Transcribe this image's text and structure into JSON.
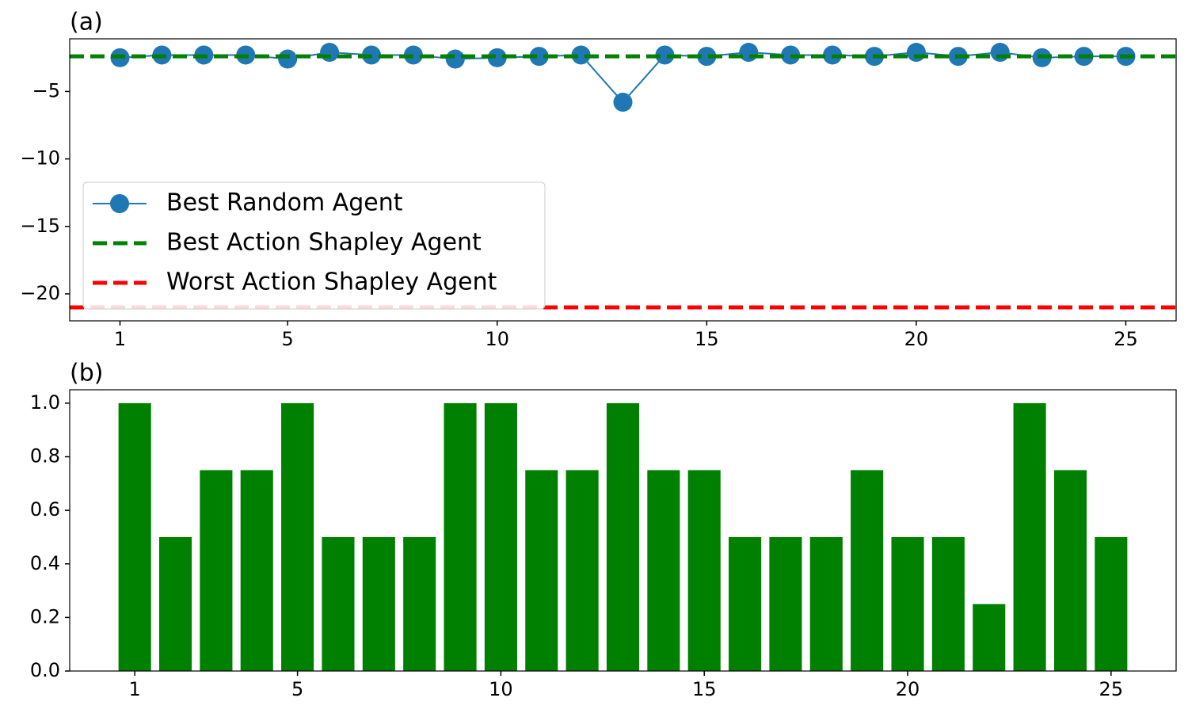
{
  "chart_data": [
    {
      "type": "line",
      "title": "(a)",
      "x": [
        1,
        2,
        3,
        4,
        5,
        6,
        7,
        8,
        9,
        10,
        11,
        12,
        13,
        14,
        15,
        16,
        17,
        18,
        19,
        20,
        21,
        22,
        23,
        24,
        25
      ],
      "series": [
        {
          "name": "Best Random Agent",
          "color": "#1f77b4",
          "values": [
            -2.5,
            -2.3,
            -2.3,
            -2.3,
            -2.6,
            -2.1,
            -2.3,
            -2.3,
            -2.6,
            -2.5,
            -2.4,
            -2.3,
            -5.8,
            -2.3,
            -2.4,
            -2.1,
            -2.3,
            -2.3,
            -2.4,
            -2.1,
            -2.4,
            -2.1,
            -2.5,
            -2.4,
            -2.4
          ]
        }
      ],
      "hlines": [
        {
          "name": "Best Action Shapley Agent",
          "color": "#008000",
          "value": -2.4
        },
        {
          "name": "Worst Action Shapley Agent",
          "color": "#ff0000",
          "value": -21.0
        }
      ],
      "xlim": [
        -0.2,
        26.2
      ],
      "xticks": [
        1,
        5,
        10,
        15,
        20,
        25
      ],
      "ylim": [
        -22,
        -1.1
      ],
      "yticks": [
        {
          "value": -5,
          "label": "−5"
        },
        {
          "value": -10,
          "label": "−10"
        },
        {
          "value": -15,
          "label": "−15"
        },
        {
          "value": -20,
          "label": "−20"
        }
      ],
      "legend": "lower left"
    },
    {
      "type": "bar",
      "title": "(b)",
      "x": [
        1,
        2,
        3,
        4,
        5,
        6,
        7,
        8,
        9,
        10,
        11,
        12,
        13,
        14,
        15,
        16,
        17,
        18,
        19,
        20,
        21,
        22,
        23,
        24,
        25
      ],
      "values": [
        1,
        0.5,
        0.75,
        0.75,
        1,
        0.5,
        0.5,
        0.5,
        1,
        1,
        0.75,
        0.75,
        1,
        0.75,
        0.75,
        0.5,
        0.5,
        0.5,
        0.75,
        0.5,
        0.5,
        0.25,
        1,
        0.75,
        0.5
      ],
      "color": "#008000",
      "xlim": [
        -0.6,
        26.6
      ],
      "xticks": [
        1,
        5,
        10,
        15,
        20,
        25
      ],
      "ylim": [
        0,
        1.05
      ],
      "yticks": [
        {
          "value": 0,
          "label": "0.0"
        },
        0.2,
        0.4,
        0.6,
        0.8,
        {
          "value": 1,
          "label": "1.0"
        }
      ]
    }
  ]
}
